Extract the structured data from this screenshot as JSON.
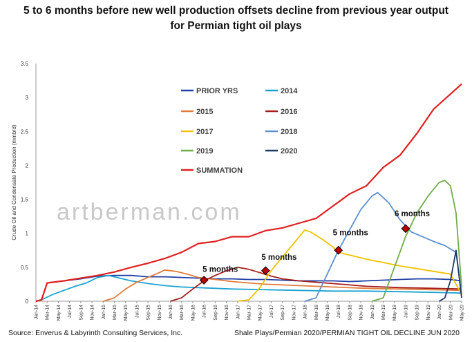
{
  "chart_data": {
    "type": "line",
    "title": "5 to 6 months before new well production offsets decline from previous year output",
    "subtitle": "for Permian tight oil plays",
    "ylabel": "Crude Oil and Condensate Production  (mmb/d)",
    "xlabel": "",
    "ylim": [
      0,
      3.5
    ],
    "yticks": [
      "0",
      "0.5",
      "1",
      "1.5",
      "2",
      "2.5",
      "3",
      "3.5"
    ],
    "grid": false,
    "legend_placement": "upper-left-inside",
    "watermark": "artberman.com",
    "source": "Source: Enverus & Labyrinth Consulting Services, Inc.",
    "reference": "Shale Plays/Permian 2020/PERMIAN TIGHT OIL DECLINE JUN 2020",
    "x_start": "2014-01",
    "x_end": "2020-05",
    "x_tick_labels": [
      "Jan-14",
      "Mar-14",
      "May-14",
      "Jul-14",
      "Sep-14",
      "Nov-14",
      "Jan-15",
      "Mar-15",
      "May-15",
      "Jul-15",
      "Sep-15",
      "Nov-15",
      "Jan-16",
      "Mar-16",
      "May-16",
      "Jul-16",
      "Sep-16",
      "Nov-16",
      "Jan-17",
      "Mar-17",
      "May-17",
      "Jul-17",
      "Sep-17",
      "Nov-17",
      "Jan-18",
      "Mar-18",
      "May-18",
      "Jul-18",
      "Sep-18",
      "Nov-18",
      "Jan-19",
      "Mar-19",
      "May-19",
      "Jul-19",
      "Sep-19",
      "Nov-19",
      "Jan-20",
      "Mar-20",
      "May-20"
    ],
    "series": [
      {
        "name": "PRIOR YRS",
        "color": "#1f3fa6",
        "points": [
          [
            "2014-01",
            0
          ],
          [
            "2014-02",
            0.02
          ],
          [
            "2014-03",
            0.27
          ],
          [
            "2014-06",
            0.3
          ],
          [
            "2014-09",
            0.33
          ],
          [
            "2014-12",
            0.37
          ],
          [
            "2015-03",
            0.38
          ],
          [
            "2015-06",
            0.38
          ],
          [
            "2015-09",
            0.36
          ],
          [
            "2015-12",
            0.36
          ],
          [
            "2016-03",
            0.35
          ],
          [
            "2016-06",
            0.34
          ],
          [
            "2016-09",
            0.33
          ],
          [
            "2016-12",
            0.33
          ],
          [
            "2017-03",
            0.32
          ],
          [
            "2017-06",
            0.32
          ],
          [
            "2017-09",
            0.31
          ],
          [
            "2017-12",
            0.3
          ],
          [
            "2018-03",
            0.3
          ],
          [
            "2018-06",
            0.3
          ],
          [
            "2018-09",
            0.29
          ],
          [
            "2018-12",
            0.3
          ],
          [
            "2019-03",
            0.31
          ],
          [
            "2019-06",
            0.32
          ],
          [
            "2019-09",
            0.33
          ],
          [
            "2019-12",
            0.33
          ],
          [
            "2020-03",
            0.32
          ],
          [
            "2020-05",
            0.3
          ]
        ]
      },
      {
        "name": "2014",
        "color": "#1aa3d1",
        "points": [
          [
            "2014-01",
            0
          ],
          [
            "2014-02",
            0.02
          ],
          [
            "2014-04",
            0.1
          ],
          [
            "2014-06",
            0.16
          ],
          [
            "2014-08",
            0.22
          ],
          [
            "2014-10",
            0.27
          ],
          [
            "2014-12",
            0.35
          ],
          [
            "2015-02",
            0.38
          ],
          [
            "2015-04",
            0.34
          ],
          [
            "2015-06",
            0.3
          ],
          [
            "2015-09",
            0.26
          ],
          [
            "2015-12",
            0.23
          ],
          [
            "2016-03",
            0.21
          ],
          [
            "2016-06",
            0.2
          ],
          [
            "2016-09",
            0.19
          ],
          [
            "2016-12",
            0.18
          ],
          [
            "2017-06",
            0.17
          ],
          [
            "2017-12",
            0.16
          ],
          [
            "2018-06",
            0.15
          ],
          [
            "2018-12",
            0.15
          ],
          [
            "2019-06",
            0.14
          ],
          [
            "2019-12",
            0.13
          ],
          [
            "2020-05",
            0.12
          ]
        ]
      },
      {
        "name": "2015",
        "color": "#e07b39",
        "points": [
          [
            "2015-01",
            0
          ],
          [
            "2015-03",
            0.05
          ],
          [
            "2015-05",
            0.18
          ],
          [
            "2015-07",
            0.28
          ],
          [
            "2015-09",
            0.35
          ],
          [
            "2015-11",
            0.42
          ],
          [
            "2015-12",
            0.46
          ],
          [
            "2016-02",
            0.44
          ],
          [
            "2016-04",
            0.4
          ],
          [
            "2016-06",
            0.35
          ],
          [
            "2016-09",
            0.32
          ],
          [
            "2016-12",
            0.29
          ],
          [
            "2017-03",
            0.27
          ],
          [
            "2017-06",
            0.25
          ],
          [
            "2017-09",
            0.24
          ],
          [
            "2017-12",
            0.23
          ],
          [
            "2018-06",
            0.21
          ],
          [
            "2018-12",
            0.19
          ],
          [
            "2019-06",
            0.18
          ],
          [
            "2019-12",
            0.17
          ],
          [
            "2020-05",
            0.16
          ]
        ]
      },
      {
        "name": "2016",
        "color": "#a51c1c",
        "points": [
          [
            "2016-01",
            0
          ],
          [
            "2016-03",
            0.05
          ],
          [
            "2016-05",
            0.18
          ],
          [
            "2016-07",
            0.3
          ],
          [
            "2016-09",
            0.38
          ],
          [
            "2016-11",
            0.45
          ],
          [
            "2017-01",
            0.5
          ],
          [
            "2017-03",
            0.47
          ],
          [
            "2017-05",
            0.42
          ],
          [
            "2017-07",
            0.37
          ],
          [
            "2017-09",
            0.33
          ],
          [
            "2017-12",
            0.3
          ],
          [
            "2018-03",
            0.28
          ],
          [
            "2018-06",
            0.26
          ],
          [
            "2018-09",
            0.24
          ],
          [
            "2018-12",
            0.22
          ],
          [
            "2019-06",
            0.2
          ],
          [
            "2019-12",
            0.19
          ],
          [
            "2020-05",
            0.18
          ]
        ]
      },
      {
        "name": "2017",
        "color": "#f2c200",
        "points": [
          [
            "2017-01",
            0
          ],
          [
            "2017-03",
            0.02
          ],
          [
            "2017-05",
            0.2
          ],
          [
            "2017-07",
            0.45
          ],
          [
            "2017-09",
            0.65
          ],
          [
            "2017-11",
            0.85
          ],
          [
            "2018-01",
            1.05
          ],
          [
            "2018-02",
            1.02
          ],
          [
            "2018-04",
            0.92
          ],
          [
            "2018-06",
            0.8
          ],
          [
            "2018-07",
            0.72
          ],
          [
            "2018-09",
            0.68
          ],
          [
            "2018-12",
            0.62
          ],
          [
            "2019-03",
            0.57
          ],
          [
            "2019-06",
            0.52
          ],
          [
            "2019-09",
            0.48
          ],
          [
            "2019-12",
            0.44
          ],
          [
            "2020-03",
            0.4
          ],
          [
            "2020-05",
            0.1
          ]
        ]
      },
      {
        "name": "2018",
        "color": "#5b8fd1",
        "points": [
          [
            "2018-01",
            0
          ],
          [
            "2018-03",
            0.05
          ],
          [
            "2018-05",
            0.4
          ],
          [
            "2018-07",
            0.75
          ],
          [
            "2018-09",
            1.05
          ],
          [
            "2018-11",
            1.35
          ],
          [
            "2019-01",
            1.55
          ],
          [
            "2019-02",
            1.6
          ],
          [
            "2019-04",
            1.45
          ],
          [
            "2019-06",
            1.2
          ],
          [
            "2019-08",
            1.02
          ],
          [
            "2019-10",
            0.95
          ],
          [
            "2019-12",
            0.88
          ],
          [
            "2020-02",
            0.82
          ],
          [
            "2020-04",
            0.72
          ],
          [
            "2020-05",
            0.1
          ]
        ]
      },
      {
        "name": "2019",
        "color": "#70ad47",
        "points": [
          [
            "2019-01",
            0
          ],
          [
            "2019-03",
            0.05
          ],
          [
            "2019-05",
            0.5
          ],
          [
            "2019-07",
            0.95
          ],
          [
            "2019-09",
            1.3
          ],
          [
            "2019-11",
            1.55
          ],
          [
            "2020-01",
            1.75
          ],
          [
            "2020-02",
            1.78
          ],
          [
            "2020-03",
            1.7
          ],
          [
            "2020-04",
            1.3
          ],
          [
            "2020-05",
            0.2
          ]
        ]
      },
      {
        "name": "2020",
        "color": "#1f3864",
        "points": [
          [
            "2020-01",
            0
          ],
          [
            "2020-02",
            0.05
          ],
          [
            "2020-03",
            0.3
          ],
          [
            "2020-04",
            0.75
          ],
          [
            "2020-05",
            0.05
          ]
        ]
      },
      {
        "name": "SUMMATION",
        "color": "#e02020",
        "points": [
          [
            "2014-01",
            0
          ],
          [
            "2014-02",
            0.02
          ],
          [
            "2014-03",
            0.27
          ],
          [
            "2014-06",
            0.3
          ],
          [
            "2014-09",
            0.34
          ],
          [
            "2014-12",
            0.38
          ],
          [
            "2015-03",
            0.43
          ],
          [
            "2015-06",
            0.5
          ],
          [
            "2015-09",
            0.56
          ],
          [
            "2015-12",
            0.63
          ],
          [
            "2016-03",
            0.72
          ],
          [
            "2016-06",
            0.85
          ],
          [
            "2016-09",
            0.88
          ],
          [
            "2016-12",
            0.95
          ],
          [
            "2017-03",
            0.95
          ],
          [
            "2017-06",
            1.04
          ],
          [
            "2017-09",
            1.08
          ],
          [
            "2017-12",
            1.15
          ],
          [
            "2018-03",
            1.22
          ],
          [
            "2018-06",
            1.4
          ],
          [
            "2018-09",
            1.58
          ],
          [
            "2018-12",
            1.7
          ],
          [
            "2019-03",
            1.97
          ],
          [
            "2019-06",
            2.15
          ],
          [
            "2019-09",
            2.47
          ],
          [
            "2019-12",
            2.83
          ],
          [
            "2020-03",
            3.05
          ],
          [
            "2020-05",
            3.2
          ]
        ]
      }
    ],
    "annotations": [
      {
        "text": "5 months",
        "date": "2016-07",
        "value": 0.31
      },
      {
        "text": "5 months",
        "date": "2017-06",
        "value": 0.45
      },
      {
        "text": "5 months",
        "date": "2018-07",
        "value": 0.75
      },
      {
        "text": "6 months",
        "date": "2019-07",
        "value": 1.07
      }
    ]
  }
}
